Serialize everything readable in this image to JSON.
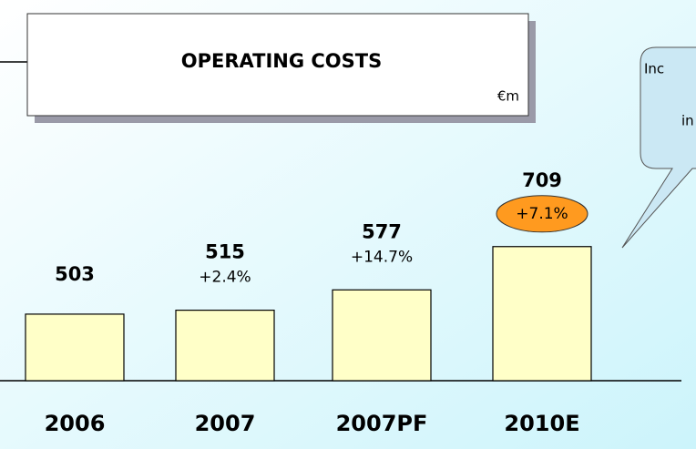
{
  "chart_data": {
    "type": "bar",
    "title": "OPERATING COSTS",
    "unit": "€m",
    "categories": [
      "2006",
      "2007",
      "2007PF",
      "2010E"
    ],
    "values": [
      503,
      515,
      577,
      709
    ],
    "growth_labels": [
      null,
      "+2.4%",
      "+14.7%",
      "+7.1%"
    ],
    "highlight_color": "#ff9a1f",
    "color": "#ffffc8",
    "ylim": [
      300,
      800
    ],
    "callout": [
      "Inc",
      "in"
    ]
  }
}
